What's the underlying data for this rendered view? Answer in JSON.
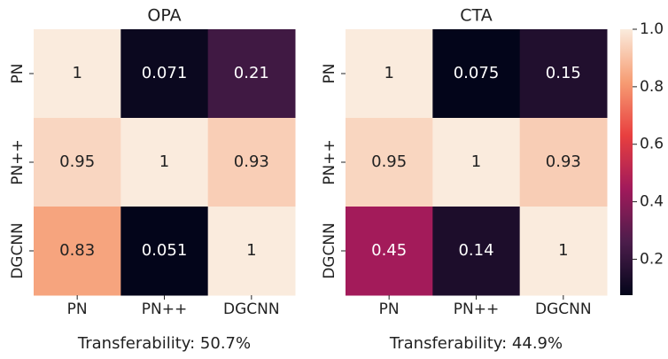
{
  "chart_data": [
    {
      "type": "heatmap",
      "title": "OPA",
      "x_categories": [
        "PN",
        "PN++",
        "DGCNN"
      ],
      "y_categories": [
        "PN",
        "PN++",
        "DGCNN"
      ],
      "values": [
        [
          1,
          0.071,
          0.21
        ],
        [
          0.95,
          1,
          0.93
        ],
        [
          0.83,
          0.051,
          1
        ]
      ],
      "colormap": "rocket",
      "clim": [
        0.051,
        1
      ],
      "annotation": "Transferability: 50.7%"
    },
    {
      "type": "heatmap",
      "title": "CTA",
      "x_categories": [
        "PN",
        "PN++",
        "DGCNN"
      ],
      "y_categories": [
        "PN",
        "PN++",
        "DGCNN"
      ],
      "values": [
        [
          1,
          0.075,
          0.15
        ],
        [
          0.95,
          1,
          0.93
        ],
        [
          0.45,
          0.14,
          1
        ]
      ],
      "colormap": "rocket",
      "clim": [
        0.075,
        1
      ],
      "cticks": [
        0.2,
        0.4,
        0.6,
        0.8,
        {
          "value": 1,
          "label": "1.0"
        }
      ],
      "annotation": "Transferability: 44.9%"
    }
  ]
}
